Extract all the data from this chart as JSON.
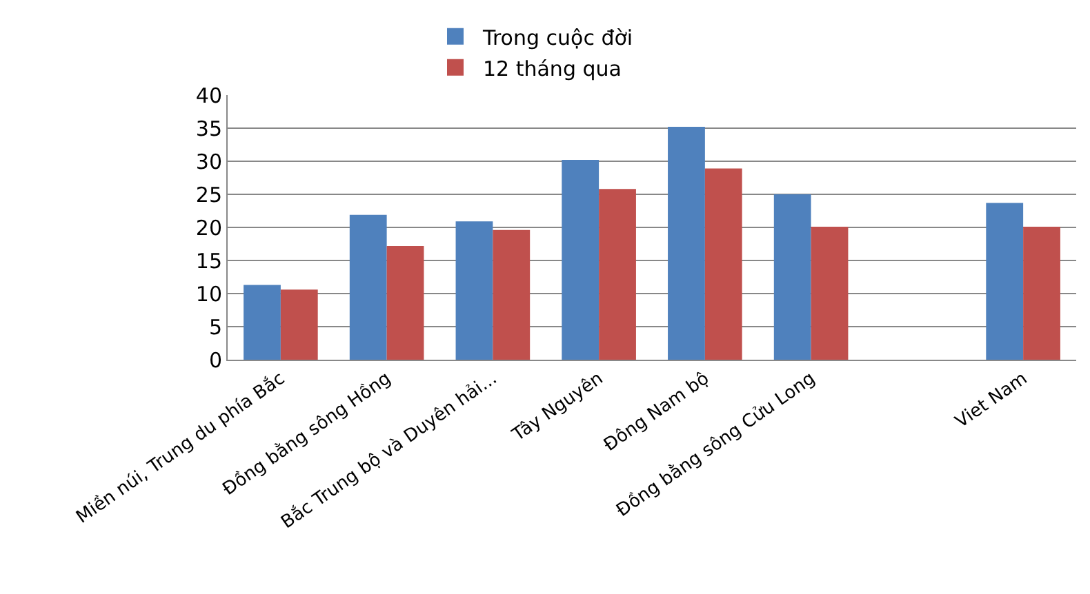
{
  "chart_data": {
    "type": "bar",
    "categories": [
      "Miền núi, Trung du phía Bắc",
      "Đồng bằng sông Hồng",
      "Bắc Trung bộ và Duyên hải...",
      "Tây Nguyên",
      "Đông Nam bộ",
      "Đồng bằng sông Cửu Long",
      null,
      "Viet Nam"
    ],
    "series": [
      {
        "name": "Trong cuộc đời",
        "color": "#4f81bd",
        "values": [
          11.3,
          21.9,
          20.9,
          30.2,
          35.2,
          25.0,
          null,
          23.7
        ]
      },
      {
        "name": "12 tháng qua",
        "color": "#c0504d",
        "values": [
          10.6,
          17.2,
          19.6,
          25.8,
          28.9,
          20.1,
          null,
          20.1
        ]
      }
    ],
    "ylim": [
      0,
      40
    ],
    "yticks": [
      0,
      5,
      10,
      15,
      20,
      25,
      30,
      35,
      40
    ],
    "grid": "y",
    "legend": "top"
  }
}
